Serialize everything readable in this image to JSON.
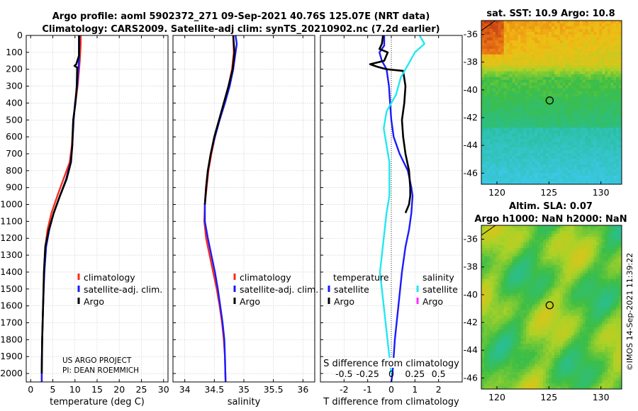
{
  "title_line1": "Argo profile: aoml 5902372_271 09-Sep-2021 40.76S 125.07E (NRT data)",
  "title_line2": "Climatology: CARS2009. Satellite-adj clim: synTS_20210902.nc (7.2d earlier)",
  "credit_line1": "US ARGO PROJECT",
  "credit_line2": "PI: DEAN ROEMMICH",
  "timestamp": "©IMOS 14-Sep-2021 11:39:22",
  "colors": {
    "climatology": "#ff2a1a",
    "satellite": "#1a1aff",
    "argo": "#000000",
    "temp_diff": "#000000",
    "sat_sal_diff": "#22e8f0",
    "argo_sal_diff": "#ff2aff"
  },
  "chart_data": [
    {
      "type": "line",
      "id": "temperature",
      "xlabel": "temperature (deg C)",
      "xlim": [
        -1,
        31
      ],
      "xticks": [
        0,
        5,
        10,
        15,
        20,
        25,
        30
      ],
      "ylim": [
        0,
        2050
      ],
      "yticks": [
        0,
        100,
        200,
        300,
        400,
        500,
        600,
        700,
        800,
        900,
        1000,
        1100,
        1200,
        1300,
        1400,
        1500,
        1600,
        1700,
        1800,
        1900,
        2000
      ],
      "legend": [
        "climatology",
        "satellite-adj. clim.",
        "Argo"
      ],
      "series": [
        {
          "name": "climatology",
          "points": [
            [
              11.3,
              0
            ],
            [
              11.3,
              50
            ],
            [
              11.1,
              150
            ],
            [
              10.6,
              300
            ],
            [
              10.1,
              400
            ],
            [
              9.6,
              500
            ],
            [
              9.3,
              650
            ],
            [
              8.8,
              750
            ],
            [
              7.4,
              850
            ],
            [
              6.0,
              950
            ],
            [
              4.7,
              1050
            ],
            [
              3.8,
              1150
            ],
            [
              3.3,
              1250
            ],
            [
              3.0,
              1400
            ],
            [
              2.8,
              1600
            ],
            [
              2.6,
              1800
            ],
            [
              2.5,
              1950
            ],
            [
              2.5,
              2050
            ]
          ]
        },
        {
          "name": "satellite-adj. clim.",
          "points": [
            [
              11.0,
              0
            ],
            [
              11.0,
              50
            ],
            [
              10.9,
              150
            ],
            [
              10.5,
              300
            ],
            [
              10.0,
              400
            ],
            [
              9.7,
              500
            ],
            [
              9.4,
              650
            ],
            [
              9.0,
              750
            ],
            [
              8.0,
              850
            ],
            [
              6.6,
              950
            ],
            [
              5.2,
              1050
            ],
            [
              4.2,
              1150
            ],
            [
              3.5,
              1250
            ],
            [
              3.1,
              1400
            ],
            [
              2.8,
              1600
            ],
            [
              2.6,
              1800
            ],
            [
              2.5,
              1950
            ],
            [
              2.5,
              2050
            ]
          ]
        },
        {
          "name": "Argo",
          "points": [
            [
              10.9,
              0
            ],
            [
              10.9,
              120
            ],
            [
              10.3,
              170
            ],
            [
              9.9,
              180
            ],
            [
              10.5,
              190
            ],
            [
              10.4,
              300
            ],
            [
              10.1,
              400
            ],
            [
              9.6,
              500
            ],
            [
              9.4,
              650
            ],
            [
              9.1,
              750
            ],
            [
              8.1,
              850
            ],
            [
              6.6,
              950
            ],
            [
              5.2,
              1050
            ],
            [
              4.1,
              1150
            ],
            [
              3.3,
              1250
            ],
            [
              3.0,
              1400
            ],
            [
              2.8,
              1600
            ],
            [
              2.6,
              1800
            ],
            [
              2.5,
              2000
            ]
          ]
        }
      ]
    },
    {
      "type": "line",
      "id": "salinity",
      "xlabel": "salinity",
      "xlim": [
        33.8,
        36.2
      ],
      "xticks": [
        34,
        34.5,
        35,
        35.5,
        36
      ],
      "ylim": [
        0,
        2050
      ],
      "legend": [
        "climatology",
        "satellite-adj. clim.",
        "Argo"
      ],
      "series": [
        {
          "name": "climatology",
          "points": [
            [
              34.82,
              0
            ],
            [
              34.83,
              100
            ],
            [
              34.8,
              200
            ],
            [
              34.74,
              300
            ],
            [
              34.67,
              400
            ],
            [
              34.59,
              500
            ],
            [
              34.51,
              600
            ],
            [
              34.45,
              700
            ],
            [
              34.4,
              800
            ],
            [
              34.37,
              900
            ],
            [
              34.34,
              1000
            ],
            [
              34.33,
              1100
            ],
            [
              34.36,
              1200
            ],
            [
              34.42,
              1300
            ],
            [
              34.48,
              1400
            ],
            [
              34.54,
              1500
            ],
            [
              34.59,
              1600
            ],
            [
              34.63,
              1700
            ],
            [
              34.66,
              1800
            ],
            [
              34.68,
              1900
            ],
            [
              34.69,
              2050
            ]
          ]
        },
        {
          "name": "satellite-adj. clim.",
          "points": [
            [
              34.86,
              0
            ],
            [
              34.88,
              50
            ],
            [
              34.86,
              100
            ],
            [
              34.82,
              200
            ],
            [
              34.76,
              300
            ],
            [
              34.68,
              400
            ],
            [
              34.59,
              500
            ],
            [
              34.51,
              600
            ],
            [
              34.44,
              700
            ],
            [
              34.39,
              800
            ],
            [
              34.36,
              900
            ],
            [
              34.34,
              1000
            ],
            [
              34.34,
              1100
            ],
            [
              34.39,
              1200
            ],
            [
              34.45,
              1300
            ],
            [
              34.51,
              1400
            ],
            [
              34.56,
              1500
            ],
            [
              34.6,
              1600
            ],
            [
              34.64,
              1700
            ],
            [
              34.67,
              1800
            ],
            [
              34.68,
              1900
            ],
            [
              34.69,
              2050
            ]
          ]
        },
        {
          "name": "Argo",
          "points": [
            [
              34.82,
              0
            ],
            [
              34.84,
              100
            ],
            [
              34.81,
              200
            ],
            [
              34.74,
              300
            ],
            [
              34.66,
              400
            ],
            [
              34.58,
              500
            ],
            [
              34.5,
              600
            ],
            [
              34.44,
              700
            ],
            [
              34.39,
              800
            ],
            [
              34.36,
              900
            ],
            [
              34.34,
              1000
            ]
          ]
        }
      ]
    },
    {
      "type": "line",
      "id": "differences",
      "xlabel": "T difference from climatology",
      "xlim": [
        -3,
        3
      ],
      "xticks": [
        -2,
        -1,
        0,
        1,
        2
      ],
      "xlabel_top": "S difference from climatology",
      "xticks_top": [
        -0.5,
        -0.25,
        0,
        0.25,
        0.5
      ],
      "ylim": [
        0,
        2050
      ],
      "legend_temperature_title": "temperature",
      "legend_salinity_title": "salinity",
      "legend_temperature": [
        "satellite",
        "Argo"
      ],
      "legend_salinity": [
        "satellite",
        "Argo"
      ],
      "series": [
        {
          "name": "temperature satellite",
          "points": [
            [
              -0.3,
              0
            ],
            [
              -0.3,
              60
            ],
            [
              -0.5,
              100
            ],
            [
              -0.4,
              150
            ],
            [
              -0.2,
              200
            ],
            [
              -0.1,
              300
            ],
            [
              -0.05,
              400
            ],
            [
              0.0,
              500
            ],
            [
              0.1,
              600
            ],
            [
              0.35,
              700
            ],
            [
              0.7,
              800
            ],
            [
              0.85,
              900
            ],
            [
              0.9,
              950
            ],
            [
              0.85,
              1050
            ],
            [
              0.75,
              1150
            ],
            [
              0.6,
              1250
            ],
            [
              0.45,
              1400
            ],
            [
              0.3,
              1600
            ],
            [
              0.15,
              1800
            ],
            [
              0.05,
              2000
            ],
            [
              0.0,
              2050
            ]
          ]
        },
        {
          "name": "temperature Argo",
          "points": [
            [
              -0.35,
              0
            ],
            [
              -0.4,
              50
            ],
            [
              -0.5,
              80
            ],
            [
              -0.15,
              100
            ],
            [
              -0.3,
              150
            ],
            [
              -0.9,
              170
            ],
            [
              -0.6,
              185
            ],
            [
              -0.2,
              200
            ],
            [
              0.5,
              210
            ],
            [
              0.6,
              300
            ],
            [
              0.55,
              400
            ],
            [
              0.45,
              500
            ],
            [
              0.5,
              600
            ],
            [
              0.6,
              700
            ],
            [
              0.75,
              800
            ],
            [
              0.8,
              900
            ],
            [
              0.8,
              950
            ],
            [
              0.75,
              1000
            ],
            [
              0.6,
              1050
            ]
          ]
        },
        {
          "name": "salinity satellite",
          "points": [
            [
              0.3,
              0
            ],
            [
              0.35,
              50
            ],
            [
              0.25,
              100
            ],
            [
              0.2,
              150
            ],
            [
              0.1,
              250
            ],
            [
              0.05,
              350
            ],
            [
              -0.05,
              450
            ],
            [
              -0.08,
              550
            ],
            [
              -0.05,
              650
            ],
            [
              -0.02,
              750
            ],
            [
              -0.02,
              850
            ],
            [
              -0.02,
              950
            ],
            [
              -0.05,
              1050
            ],
            [
              -0.08,
              1200
            ],
            [
              -0.1,
              1300
            ],
            [
              -0.12,
              1400
            ],
            [
              -0.1,
              1500
            ],
            [
              -0.08,
              1600
            ],
            [
              -0.05,
              1750
            ],
            [
              -0.02,
              1900
            ],
            [
              0.0,
              2000
            ]
          ]
        }
      ]
    }
  ],
  "map_sst": {
    "title": "sat. SST: 10.9 Argo: 10.8",
    "xticks": [
      120,
      125,
      130
    ],
    "yticks": [
      -36,
      -38,
      -40,
      -42,
      -44,
      -46
    ],
    "xlim": [
      118.5,
      132
    ],
    "ylim": [
      -46.8,
      -35
    ],
    "marker": [
      125.07,
      -40.76
    ]
  },
  "map_sla": {
    "title_line1": "Altim. SLA: 0.07",
    "title_line2": "Argo h1000: NaN h2000: NaN",
    "xticks": [
      120,
      125,
      130
    ],
    "yticks": [
      -36,
      -38,
      -40,
      -42,
      -44,
      -46
    ],
    "xlim": [
      118.5,
      132
    ],
    "ylim": [
      -46.8,
      -35
    ],
    "marker": [
      125.07,
      -40.76
    ]
  }
}
